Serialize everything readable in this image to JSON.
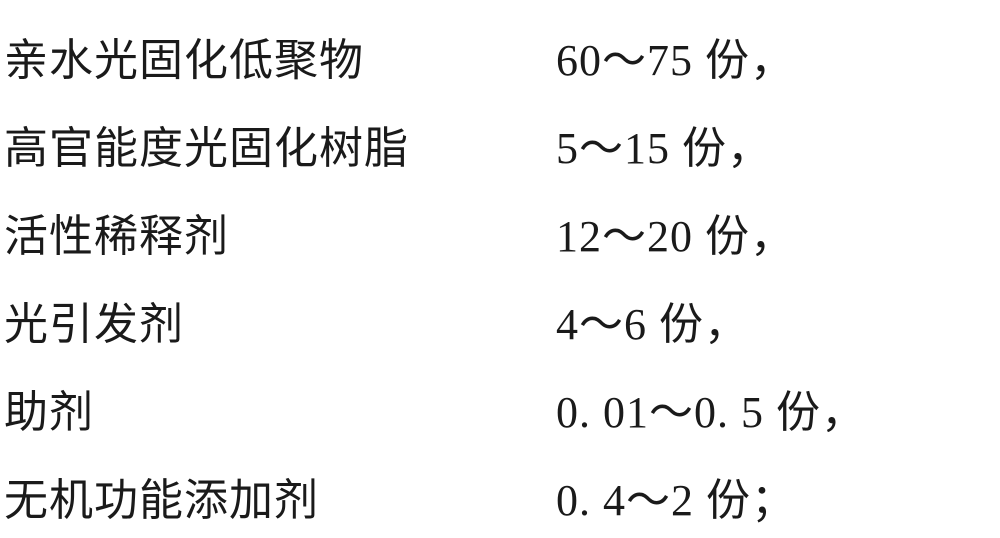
{
  "rows": [
    {
      "label": "亲水光固化低聚物",
      "value": "60～75 份，"
    },
    {
      "label": "高官能度光固化树脂",
      "value": "5～15 份，"
    },
    {
      "label": "活性稀释剂",
      "value": "12～20 份，"
    },
    {
      "label": "光引发剂",
      "value": "4～6 份，"
    },
    {
      "label": "助剂",
      "value": "0. 01～0. 5 份，"
    },
    {
      "label": "无机功能添加剂",
      "value": "0. 4～2 份；"
    }
  ]
}
